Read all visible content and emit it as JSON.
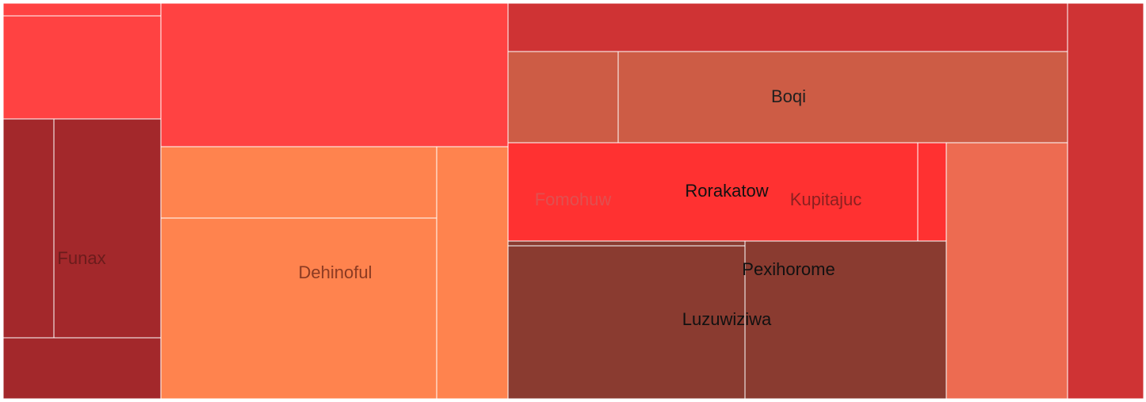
{
  "chart_data": {
    "type": "treemap",
    "labels": [
      {
        "text": "Funax",
        "color": "#6b1c1c"
      },
      {
        "text": "Dehinoful",
        "color": "#8a3a22"
      },
      {
        "text": "Boqi",
        "color": "#1f1f1f"
      },
      {
        "text": "Fomohuw",
        "color": "#e05050"
      },
      {
        "text": "Rorakatow",
        "color": "#111111"
      },
      {
        "text": "Kupitajuc",
        "color": "#8c2020"
      },
      {
        "text": "Pexihorome",
        "color": "#111111"
      },
      {
        "text": "Luzuwiziwa",
        "color": "#111111"
      }
    ],
    "colors": {
      "red": "#ff4242",
      "orange": "#ff834e",
      "dark_red": "#a3282b",
      "crimson": "#cf3334",
      "terracotta": "#cd5c45",
      "bright_red": "#ff3131",
      "brown": "#8a3b30",
      "salmon": "#ed6b51",
      "border": "#ffffff"
    }
  }
}
